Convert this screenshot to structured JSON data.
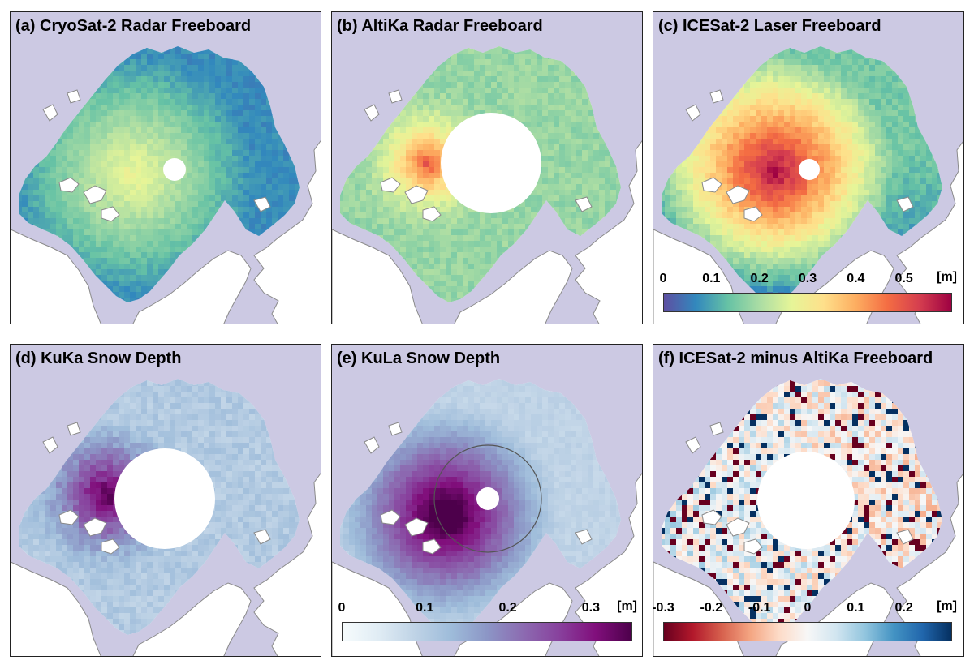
{
  "panels": {
    "a": {
      "title": "(a) CryoSat-2 Radar Freeboard",
      "palette": "spectral",
      "field": "cryo"
    },
    "b": {
      "title": "(b) AltiKa Radar Freeboard",
      "palette": "spectral",
      "field": "altika"
    },
    "c": {
      "title": "(c) ICESat-2 Laser Freeboard",
      "palette": "spectral",
      "field": "laser"
    },
    "d": {
      "title": "(d) KuKa Snow Depth",
      "palette": "purples",
      "field": "kuka"
    },
    "e": {
      "title": "(e) KuLa Snow Depth",
      "palette": "purples",
      "field": "kula"
    },
    "f": {
      "title": "(f) ICESat-2 minus AltiKa Freeboard",
      "palette": "rdbu",
      "field": "diff"
    }
  },
  "colorbars": {
    "freeboard": {
      "ticks": [
        "0",
        "0.1",
        "0.2",
        "0.3",
        "0.4",
        "0.5"
      ],
      "tick_values": [
        0,
        0.1,
        0.2,
        0.3,
        0.4,
        0.5
      ],
      "range": [
        0,
        0.6
      ],
      "unit": "[m]",
      "palette": "spectral"
    },
    "snow": {
      "ticks": [
        "0",
        "0.1",
        "0.2",
        "0.3"
      ],
      "tick_values": [
        0,
        0.1,
        0.2,
        0.3
      ],
      "range": [
        0,
        0.35
      ],
      "unit": "[m]",
      "palette": "purples"
    },
    "difference": {
      "ticks": [
        "-0.3",
        "-0.2",
        "-0.1",
        "0",
        "0.1",
        "0.2"
      ],
      "tick_values": [
        -0.3,
        -0.2,
        -0.1,
        0,
        0.1,
        0.2
      ],
      "range": [
        -0.3,
        0.3
      ],
      "unit": "[m]",
      "palette": "rdbu"
    }
  },
  "colors": {
    "ocean": "#ccc9e3",
    "land": "#ffffff",
    "coastline": "#8a8a8a",
    "spectral": [
      "#5e4fa2",
      "#3288bd",
      "#66c2a5",
      "#abdda4",
      "#e6f598",
      "#fee08b",
      "#fdae61",
      "#f46d43",
      "#d53e4f",
      "#9e0142"
    ],
    "purples": [
      "#f7fcfd",
      "#e0ecf4",
      "#bfd3e6",
      "#9ebcda",
      "#8c96c6",
      "#8c6bb1",
      "#88419d",
      "#810f7c",
      "#4d004b"
    ],
    "rdbu": [
      "#67001f",
      "#b2182b",
      "#d6604d",
      "#f4a582",
      "#fddbc7",
      "#f7f7f7",
      "#d1e5f0",
      "#92c5de",
      "#4393c3",
      "#2166ac",
      "#053061"
    ]
  }
}
